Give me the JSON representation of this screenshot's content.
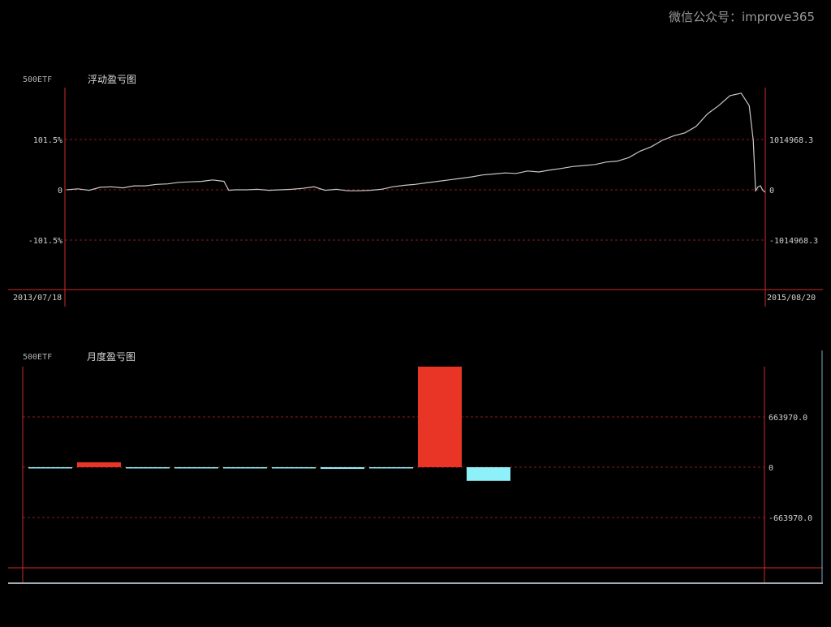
{
  "watermark": "微信公众号：improve365",
  "chart_data": [
    {
      "type": "line",
      "symbol": "500ETF",
      "title": "浮动盈亏图",
      "x_start_label": "2013/07/18",
      "x_end_label": "2015/08/20",
      "left_ticks": [
        {
          "value": 1014968.3,
          "label": "101.5%"
        },
        {
          "value": 0,
          "label": "0"
        },
        {
          "value": -1014968.3,
          "label": "-101.5%"
        }
      ],
      "right_ticks": [
        {
          "value": 1014968.3,
          "label": "1014968.3"
        },
        {
          "value": 0,
          "label": "0"
        },
        {
          "value": -1014968.3,
          "label": "-1014968.3"
        }
      ],
      "ylim": [
        -1965000,
        1965000
      ],
      "grid": true,
      "line_color": "#c8c8c8",
      "axis_color": "#d12a2a",
      "grid_color": "#8a1c1c",
      "series": [
        {
          "x": [
            0,
            14,
            28,
            42,
            56,
            70,
            84,
            98,
            112,
            126,
            140,
            154,
            168,
            182,
            196,
            202,
            210,
            224,
            238,
            252,
            266,
            280,
            294,
            308,
            322,
            336,
            350,
            364,
            378,
            392,
            406,
            420,
            434,
            448,
            462,
            476,
            490,
            504,
            518,
            532,
            546,
            560,
            574,
            588,
            602,
            616,
            630,
            644,
            658,
            672,
            686,
            700,
            714,
            728,
            742,
            756,
            770,
            784,
            798,
            812,
            826,
            840,
            850,
            855,
            858,
            861,
            864,
            867,
            870
          ],
          "y": [
            0,
            20000,
            -10000,
            50000,
            60000,
            40000,
            80000,
            80000,
            110000,
            120000,
            150000,
            160000,
            170000,
            200000,
            170000,
            -10000,
            0,
            0,
            10000,
            -10000,
            0,
            10000,
            30000,
            60000,
            -10000,
            10000,
            -20000,
            -20000,
            -10000,
            10000,
            60000,
            90000,
            110000,
            140000,
            170000,
            200000,
            230000,
            260000,
            300000,
            320000,
            340000,
            330000,
            380000,
            360000,
            400000,
            430000,
            470000,
            490000,
            510000,
            560000,
            580000,
            650000,
            780000,
            870000,
            1000000,
            1090000,
            1150000,
            1280000,
            1530000,
            1700000,
            1900000,
            1950000,
            1700000,
            1000000,
            -20000,
            60000,
            80000,
            -10000,
            -50000
          ]
        }
      ]
    },
    {
      "type": "bar",
      "symbol": "500ETF",
      "title": "月度盈亏图",
      "right_ticks": [
        {
          "value": 663970.0,
          "label": "663970.0"
        },
        {
          "value": 0,
          "label": "0"
        },
        {
          "value": -663970.0,
          "label": "-663970.0"
        }
      ],
      "ylim": [
        -1325000,
        1325000
      ],
      "grid": true,
      "positive_color": "#e83526",
      "negative_color": "#8ef0f8",
      "values": [
        -8000,
        65000,
        -8000,
        -8000,
        -8000,
        -8000,
        -22000,
        -8000,
        1330000,
        -180000
      ]
    }
  ]
}
